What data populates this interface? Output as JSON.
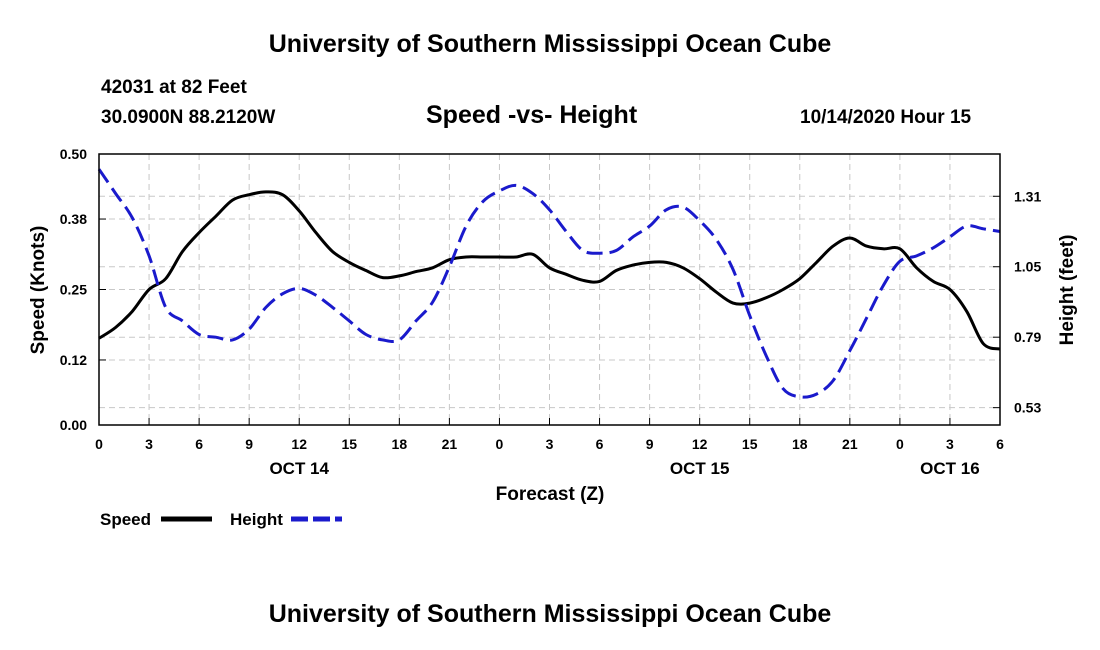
{
  "header": {
    "title": "University of Southern Mississippi Ocean Cube",
    "station": "42031 at 82 Feet",
    "coords": "30.0900N 88.2120W",
    "subtitle": "Speed -vs- Height",
    "datetime": "10/14/2020 Hour 15"
  },
  "footer": {
    "title": "University of Southern Mississippi Ocean Cube"
  },
  "colors": {
    "speed": "#000000",
    "height": "#1a1acc",
    "grid": "#c8c8c8"
  },
  "chart_data": {
    "type": "line",
    "title": "Speed -vs- Height",
    "xlabel": "Forecast (Z)",
    "ylabel": "Speed (Knots)",
    "y2label": "Height (feet)",
    "xlim": [
      0,
      54
    ],
    "ylim": [
      0,
      0.5
    ],
    "y2lim": [
      0.466,
      1.466
    ],
    "grid": true,
    "xticks": [
      0,
      3,
      6,
      9,
      12,
      15,
      18,
      21,
      24,
      27,
      30,
      33,
      36,
      39,
      42,
      45,
      48,
      51,
      54
    ],
    "xtick_labels": [
      "0",
      "3",
      "6",
      "9",
      "12",
      "15",
      "18",
      "21",
      "0",
      "3",
      "6",
      "9",
      "12",
      "15",
      "18",
      "21",
      "0",
      "3",
      "6"
    ],
    "yticks": [
      0.0,
      0.12,
      0.25,
      0.38,
      0.5
    ],
    "ytick_labels": [
      "0.00",
      "0.12",
      "0.25",
      "0.38",
      "0.50"
    ],
    "y2ticks": [
      0.53,
      0.79,
      1.05,
      1.31
    ],
    "y2tick_labels": [
      "0.53",
      "0.79",
      "1.05",
      "1.31"
    ],
    "date_labels": [
      {
        "x": 12,
        "label": "OCT 14"
      },
      {
        "x": 36,
        "label": "OCT 15"
      },
      {
        "x": 51,
        "label": "OCT 16"
      }
    ],
    "legend": {
      "position": "bottom-left",
      "entries": [
        {
          "name": "Speed",
          "style": "solid"
        },
        {
          "name": "Height",
          "style": "dashed"
        }
      ]
    },
    "series": [
      {
        "name": "Speed",
        "axis": "left",
        "units": "Knots",
        "x": [
          0,
          1,
          2,
          3,
          4,
          5,
          6,
          7,
          8,
          9,
          10,
          11,
          12,
          13,
          14,
          15,
          16,
          17,
          18,
          19,
          20,
          21,
          22,
          23,
          24,
          25,
          26,
          27,
          28,
          29,
          30,
          31,
          32,
          33,
          34,
          35,
          36,
          37,
          38,
          39,
          40,
          41,
          42,
          43,
          44,
          45,
          46,
          47,
          48,
          49,
          50,
          51,
          52,
          53,
          54
        ],
        "values": [
          0.16,
          0.18,
          0.21,
          0.25,
          0.27,
          0.32,
          0.355,
          0.385,
          0.415,
          0.425,
          0.43,
          0.425,
          0.395,
          0.355,
          0.32,
          0.3,
          0.285,
          0.272,
          0.275,
          0.283,
          0.29,
          0.305,
          0.31,
          0.31,
          0.31,
          0.31,
          0.315,
          0.29,
          0.278,
          0.267,
          0.265,
          0.285,
          0.295,
          0.3,
          0.3,
          0.29,
          0.27,
          0.245,
          0.225,
          0.225,
          0.235,
          0.25,
          0.27,
          0.3,
          0.33,
          0.345,
          0.33,
          0.325,
          0.325,
          0.29,
          0.265,
          0.25,
          0.21,
          0.15,
          0.14
        ]
      },
      {
        "name": "Height",
        "axis": "right",
        "units": "feet",
        "x": [
          0,
          1,
          2,
          3,
          4,
          5,
          6,
          7,
          8,
          9,
          10,
          11,
          12,
          13,
          14,
          15,
          16,
          17,
          18,
          19,
          20,
          21,
          22,
          23,
          24,
          25,
          26,
          27,
          28,
          29,
          30,
          31,
          32,
          33,
          34,
          35,
          36,
          37,
          38,
          39,
          40,
          41,
          42,
          43,
          44,
          45,
          46,
          47,
          48,
          49,
          50,
          51,
          52,
          53,
          54
        ],
        "values": [
          1.41,
          1.32,
          1.23,
          1.09,
          0.9,
          0.85,
          0.8,
          0.79,
          0.78,
          0.82,
          0.9,
          0.95,
          0.97,
          0.945,
          0.9,
          0.85,
          0.8,
          0.78,
          0.78,
          0.85,
          0.92,
          1.05,
          1.2,
          1.29,
          1.33,
          1.35,
          1.32,
          1.26,
          1.18,
          1.11,
          1.1,
          1.11,
          1.16,
          1.2,
          1.26,
          1.27,
          1.22,
          1.15,
          1.04,
          0.87,
          0.72,
          0.6,
          0.57,
          0.58,
          0.63,
          0.74,
          0.86,
          0.98,
          1.07,
          1.09,
          1.12,
          1.16,
          1.2,
          1.19,
          1.18
        ]
      }
    ]
  }
}
